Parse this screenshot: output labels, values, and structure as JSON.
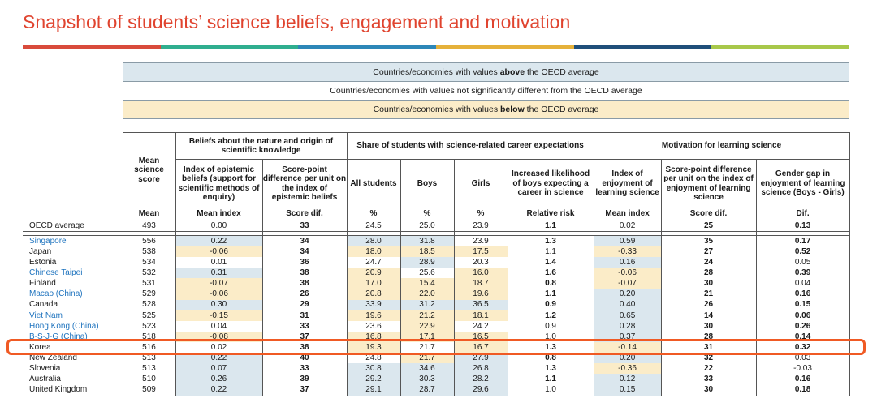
{
  "title": "Snapshot of students’ science beliefs, engagement and motivation",
  "colors": {
    "title": "#e0442f",
    "rule": [
      "#d94b3b",
      "#2fae8f",
      "#2d87b8",
      "#e5b13a",
      "#1f4f7a",
      "#a8c84a"
    ],
    "above": "#dbe7ee",
    "below": "#fbecc8",
    "highlight": "#f05a24",
    "link": "#1e73be"
  },
  "legend": {
    "above_pre": "Countries/economies with values ",
    "above_bold": "above",
    "above_post": " the OECD average",
    "not_sig": "Countries/economies with values not significantly different from the OECD average",
    "below_pre": "Countries/economies with values ",
    "below_bold": "below",
    "below_post": " the OECD average"
  },
  "header": {
    "mean_science_score": "Mean science score",
    "group_beliefs": "Beliefs about the nature and origin of scientific knowledge",
    "group_share": "Share of students with science-related career expectations",
    "group_motivation": "Motivation for learning science",
    "col_epistemic": "Index of epistemic beliefs (support for scientific methods of enquiry)",
    "col_score_point_epi": "Score-point difference per unit on the index of epistemic beliefs",
    "col_all": "All students",
    "col_boys": "Boys",
    "col_girls": "Girls",
    "col_increased": "Increased likelihood of boys expecting a career in science",
    "col_enjoyment": "Index of enjoyment of learning science",
    "col_score_point_enj": "Score-point difference per unit on the index of enjoyment of learning science",
    "col_gender_gap": "Gender gap in enjoyment of learning science (Boys - Girls)",
    "units": [
      "Mean",
      "Mean index",
      "Score dif.",
      "%",
      "%",
      "%",
      "Relative risk",
      "Mean index",
      "Score dif.",
      "Dif."
    ]
  },
  "oecd": {
    "name": "OECD average",
    "values": [
      "493",
      "0.00",
      "33",
      "24.5",
      "25.0",
      "23.9",
      "1.1",
      "0.02",
      "25",
      "0.13"
    ],
    "bold": [
      false,
      false,
      true,
      false,
      false,
      false,
      true,
      false,
      true,
      true
    ],
    "shade": [
      "",
      "",
      "",
      "",
      "",
      "",
      "",
      "",
      "",
      ""
    ]
  },
  "rows": [
    {
      "name": "Singapore",
      "link": true,
      "values": [
        "556",
        "0.22",
        "34",
        "28.0",
        "31.8",
        "23.9",
        "1.3",
        "0.59",
        "35",
        "0.17"
      ],
      "bold": [
        false,
        false,
        true,
        false,
        false,
        false,
        true,
        false,
        true,
        true
      ],
      "shade": [
        "",
        "b",
        "",
        "b",
        "b",
        "",
        "",
        "b",
        "",
        ""
      ]
    },
    {
      "name": "Japan",
      "link": false,
      "values": [
        "538",
        "-0.06",
        "34",
        "18.0",
        "18.5",
        "17.5",
        "1.1",
        "-0.33",
        "27",
        "0.52"
      ],
      "bold": [
        false,
        false,
        true,
        false,
        false,
        false,
        false,
        false,
        true,
        true
      ],
      "shade": [
        "",
        "y",
        "",
        "y",
        "y",
        "y",
        "",
        "y",
        "",
        ""
      ]
    },
    {
      "name": "Estonia",
      "link": false,
      "values": [
        "534",
        "0.01",
        "36",
        "24.7",
        "28.9",
        "20.3",
        "1.4",
        "0.16",
        "24",
        "0.05"
      ],
      "bold": [
        false,
        false,
        true,
        false,
        false,
        false,
        true,
        false,
        true,
        false
      ],
      "shade": [
        "",
        "",
        "",
        "",
        "b",
        "",
        "",
        "b",
        "",
        ""
      ]
    },
    {
      "name": "Chinese Taipei",
      "link": true,
      "values": [
        "532",
        "0.31",
        "38",
        "20.9",
        "25.6",
        "16.0",
        "1.6",
        "-0.06",
        "28",
        "0.39"
      ],
      "bold": [
        false,
        false,
        true,
        false,
        false,
        false,
        true,
        false,
        true,
        true
      ],
      "shade": [
        "",
        "b",
        "",
        "y",
        "",
        "y",
        "",
        "y",
        "",
        ""
      ]
    },
    {
      "name": "Finland",
      "link": false,
      "values": [
        "531",
        "-0.07",
        "38",
        "17.0",
        "15.4",
        "18.7",
        "0.8",
        "-0.07",
        "30",
        "0.04"
      ],
      "bold": [
        false,
        false,
        true,
        false,
        false,
        false,
        true,
        false,
        true,
        false
      ],
      "shade": [
        "",
        "y",
        "",
        "y",
        "y",
        "y",
        "",
        "y",
        "",
        ""
      ]
    },
    {
      "name": "Macao (China)",
      "link": true,
      "values": [
        "529",
        "-0.06",
        "26",
        "20.8",
        "22.0",
        "19.6",
        "1.1",
        "0.20",
        "21",
        "0.16"
      ],
      "bold": [
        false,
        false,
        true,
        false,
        false,
        false,
        true,
        false,
        true,
        true
      ],
      "shade": [
        "",
        "y",
        "",
        "y",
        "y",
        "y",
        "",
        "b",
        "",
        ""
      ]
    },
    {
      "name": "Canada",
      "link": false,
      "values": [
        "528",
        "0.30",
        "29",
        "33.9",
        "31.2",
        "36.5",
        "0.9",
        "0.40",
        "26",
        "0.15"
      ],
      "bold": [
        false,
        false,
        true,
        false,
        false,
        false,
        true,
        false,
        true,
        true
      ],
      "shade": [
        "",
        "b",
        "",
        "b",
        "b",
        "b",
        "",
        "b",
        "",
        ""
      ]
    },
    {
      "name": "Viet Nam",
      "link": true,
      "values": [
        "525",
        "-0.15",
        "31",
        "19.6",
        "21.2",
        "18.1",
        "1.2",
        "0.65",
        "14",
        "0.06"
      ],
      "bold": [
        false,
        false,
        true,
        false,
        false,
        false,
        true,
        false,
        true,
        true
      ],
      "shade": [
        "",
        "y",
        "",
        "y",
        "y",
        "y",
        "",
        "b",
        "",
        ""
      ]
    },
    {
      "name": "Hong Kong (China)",
      "link": true,
      "values": [
        "523",
        "0.04",
        "33",
        "23.6",
        "22.9",
        "24.2",
        "0.9",
        "0.28",
        "30",
        "0.26"
      ],
      "bold": [
        false,
        false,
        true,
        false,
        false,
        false,
        false,
        false,
        true,
        true
      ],
      "shade": [
        "",
        "",
        "",
        "",
        "y",
        "",
        "",
        "b",
        "",
        ""
      ]
    },
    {
      "name": "B-S-J-G (China)",
      "link": true,
      "values": [
        "518",
        "-0.08",
        "37",
        "16.8",
        "17.1",
        "16.5",
        "1.0",
        "0.37",
        "28",
        "0.14"
      ],
      "bold": [
        false,
        false,
        true,
        false,
        false,
        false,
        false,
        false,
        true,
        true
      ],
      "shade": [
        "",
        "y",
        "",
        "y",
        "y",
        "y",
        "",
        "b",
        "",
        ""
      ]
    },
    {
      "name": "Korea",
      "link": false,
      "values": [
        "516",
        "0.02",
        "38",
        "19.3",
        "21.7",
        "16.7",
        "1.3",
        "-0.14",
        "31",
        "0.32"
      ],
      "bold": [
        false,
        false,
        true,
        false,
        false,
        false,
        true,
        false,
        true,
        true
      ],
      "shade": [
        "",
        "",
        "",
        "y",
        "",
        "y",
        "",
        "y",
        "",
        ""
      ]
    },
    {
      "name": "New Zealand",
      "link": false,
      "values": [
        "513",
        "0.22",
        "40",
        "24.8",
        "21.7",
        "27.9",
        "0.8",
        "0.20",
        "32",
        "0.03"
      ],
      "bold": [
        false,
        false,
        true,
        false,
        false,
        false,
        true,
        false,
        true,
        false
      ],
      "shade": [
        "",
        "b",
        "",
        "",
        "y",
        "b",
        "",
        "b",
        "",
        ""
      ]
    },
    {
      "name": "Slovenia",
      "link": false,
      "values": [
        "513",
        "0.07",
        "33",
        "30.8",
        "34.6",
        "26.8",
        "1.3",
        "-0.36",
        "22",
        "-0.03"
      ],
      "bold": [
        false,
        false,
        true,
        false,
        false,
        false,
        true,
        false,
        true,
        false
      ],
      "shade": [
        "",
        "b",
        "",
        "b",
        "b",
        "b",
        "",
        "y",
        "",
        ""
      ]
    },
    {
      "name": "Australia",
      "link": false,
      "values": [
        "510",
        "0.26",
        "39",
        "29.2",
        "30.3",
        "28.2",
        "1.1",
        "0.12",
        "33",
        "0.16"
      ],
      "bold": [
        false,
        false,
        true,
        false,
        false,
        false,
        true,
        false,
        true,
        true
      ],
      "shade": [
        "",
        "b",
        "",
        "b",
        "b",
        "b",
        "",
        "b",
        "",
        ""
      ]
    },
    {
      "name": "United Kingdom",
      "link": false,
      "values": [
        "509",
        "0.22",
        "37",
        "29.1",
        "28.7",
        "29.6",
        "1.0",
        "0.15",
        "30",
        "0.18"
      ],
      "bold": [
        false,
        false,
        true,
        false,
        false,
        false,
        false,
        false,
        true,
        true
      ],
      "shade": [
        "",
        "b",
        "",
        "b",
        "b",
        "b",
        "",
        "b",
        "",
        ""
      ]
    }
  ]
}
